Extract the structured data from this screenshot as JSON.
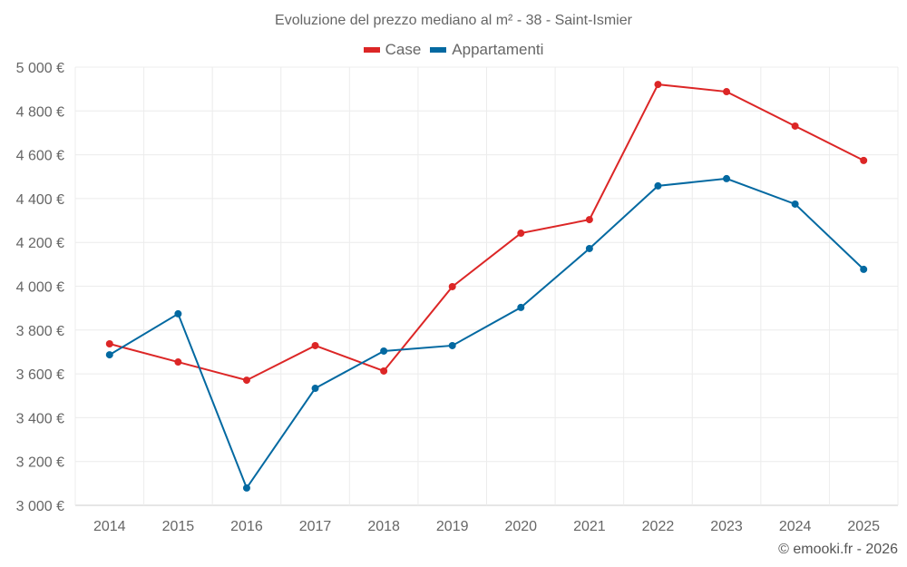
{
  "chart_data": {
    "type": "line",
    "title": "Evoluzione del prezzo mediano al m² - 38 - Saint-Ismier",
    "categories": [
      "2014",
      "2015",
      "2016",
      "2017",
      "2018",
      "2019",
      "2020",
      "2021",
      "2022",
      "2023",
      "2024",
      "2025"
    ],
    "ylim": [
      3000,
      5000
    ],
    "yticks": [
      3000,
      3200,
      3400,
      3600,
      3800,
      4000,
      4200,
      4400,
      4600,
      4800,
      5000
    ],
    "ytick_labels": [
      "3 000 €",
      "3 200 €",
      "3 400 €",
      "3 600 €",
      "3 800 €",
      "4 000 €",
      "4 200 €",
      "4 400 €",
      "4 600 €",
      "4 800 €",
      "5 000 €"
    ],
    "grid": true,
    "legend_position": "top-center",
    "series": [
      {
        "name": "Case",
        "color": "#dc2626",
        "values": [
          3737,
          3654,
          3571,
          3729,
          3613,
          3998,
          4242,
          4304,
          4921,
          4888,
          4731,
          4574
        ]
      },
      {
        "name": "Appartamenti",
        "color": "#0369a1",
        "values": [
          3687,
          3874,
          3079,
          3534,
          3704,
          3729,
          3903,
          4172,
          4458,
          4491,
          4375,
          4077
        ]
      }
    ]
  },
  "credit": "© emooki.fr - 2026"
}
